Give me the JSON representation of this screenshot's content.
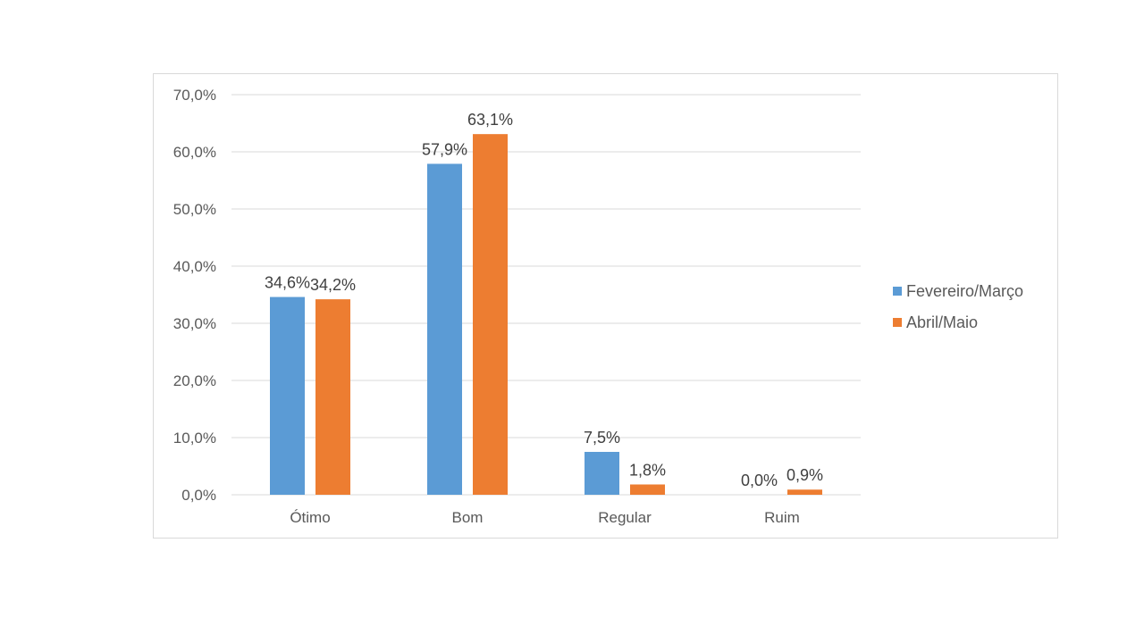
{
  "chart_data": {
    "type": "bar",
    "title": "",
    "xlabel": "",
    "ylabel": "",
    "categories": [
      "Ótimo",
      "Bom",
      "Regular",
      "Ruim"
    ],
    "series": [
      {
        "name": "Fevereiro/Março",
        "color": "#5b9bd5",
        "values": [
          34.6,
          57.9,
          7.5,
          0.0
        ],
        "labels": [
          "34,6%",
          "57,9%",
          "7,5%",
          "0,0%"
        ]
      },
      {
        "name": "Abril/Maio",
        "color": "#ed7d31",
        "values": [
          34.2,
          63.1,
          1.8,
          0.9
        ],
        "labels": [
          "34,2%",
          "63,1%",
          "1,8%",
          "0,9%"
        ]
      }
    ],
    "ylim": [
      0,
      70
    ],
    "yticks": [
      0,
      10,
      20,
      30,
      40,
      50,
      60,
      70
    ],
    "ytick_labels": [
      "0,0%",
      "10,0%",
      "20,0%",
      "30,0%",
      "40,0%",
      "50,0%",
      "60,0%",
      "70,0%"
    ],
    "grid": true,
    "legend_position": "right"
  }
}
